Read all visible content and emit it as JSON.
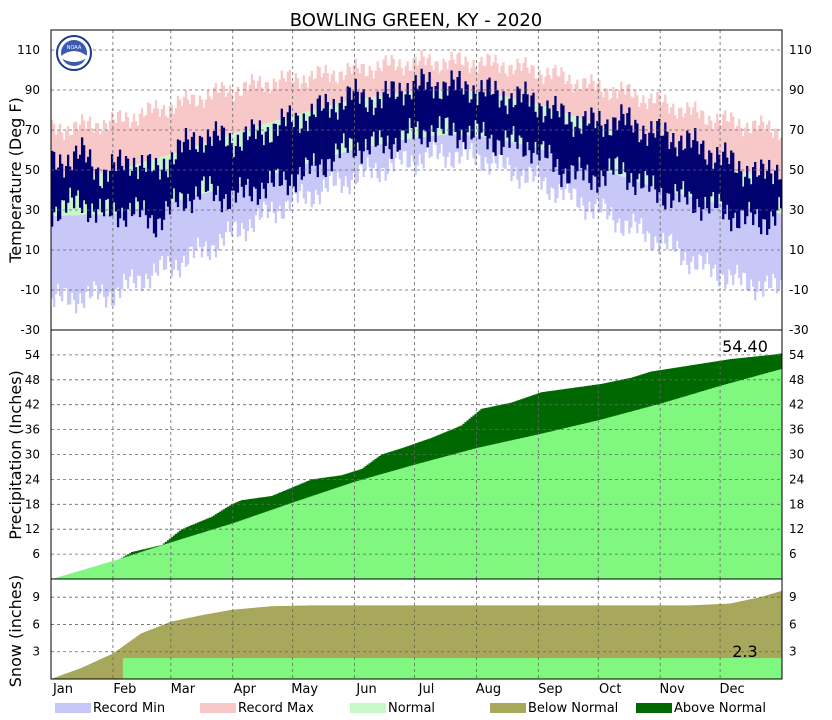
{
  "chart_data": {
    "type": "multi-panel",
    "title": "BOWLING GREEN, KY - 2020",
    "months": [
      "Jan",
      "Feb",
      "Mar",
      "Apr",
      "May",
      "Jun",
      "Jul",
      "Aug",
      "Sep",
      "Oct",
      "Nov",
      "Dec"
    ],
    "temperature": {
      "ylabel": "Temperature (Deg F)",
      "ylim": [
        -30,
        120
      ],
      "ticks": [
        -30,
        -10,
        10,
        30,
        50,
        70,
        90,
        110
      ],
      "record_min_anchors": [
        [
          0,
          -15
        ],
        [
          30,
          -12
        ],
        [
          45,
          -4
        ],
        [
          60,
          2
        ],
        [
          80,
          12
        ],
        [
          100,
          24
        ],
        [
          120,
          34
        ],
        [
          150,
          46
        ],
        [
          175,
          54
        ],
        [
          195,
          58
        ],
        [
          215,
          56
        ],
        [
          240,
          46
        ],
        [
          265,
          34
        ],
        [
          285,
          24
        ],
        [
          305,
          14
        ],
        [
          325,
          2
        ],
        [
          345,
          -6
        ],
        [
          366,
          -10
        ]
      ],
      "record_max_anchors": [
        [
          0,
          70
        ],
        [
          30,
          74
        ],
        [
          60,
          82
        ],
        [
          80,
          88
        ],
        [
          110,
          94
        ],
        [
          140,
          98
        ],
        [
          165,
          102
        ],
        [
          185,
          104
        ],
        [
          210,
          104
        ],
        [
          230,
          102
        ],
        [
          250,
          98
        ],
        [
          270,
          92
        ],
        [
          290,
          88
        ],
        [
          310,
          82
        ],
        [
          330,
          76
        ],
        [
          350,
          72
        ],
        [
          366,
          70
        ]
      ],
      "normal_low_anchors": [
        [
          0,
          27
        ],
        [
          30,
          28
        ],
        [
          60,
          34
        ],
        [
          90,
          42
        ],
        [
          120,
          51
        ],
        [
          150,
          60
        ],
        [
          180,
          66
        ],
        [
          200,
          68
        ],
        [
          215,
          67
        ],
        [
          240,
          62
        ],
        [
          270,
          52
        ],
        [
          300,
          42
        ],
        [
          330,
          34
        ],
        [
          366,
          28
        ]
      ],
      "normal_high_anchors": [
        [
          0,
          45
        ],
        [
          30,
          49
        ],
        [
          60,
          58
        ],
        [
          90,
          68
        ],
        [
          120,
          77
        ],
        [
          150,
          85
        ],
        [
          180,
          89
        ],
        [
          200,
          90
        ],
        [
          215,
          89
        ],
        [
          240,
          84
        ],
        [
          270,
          74
        ],
        [
          300,
          63
        ],
        [
          330,
          52
        ],
        [
          366,
          45
        ]
      ],
      "actual_anchors": [
        [
          0,
          [
            30,
            50
          ]
        ],
        [
          15,
          [
            34,
            55
          ]
        ],
        [
          25,
          [
            28,
            45
          ]
        ],
        [
          40,
          [
            30,
            52
          ]
        ],
        [
          52,
          [
            24,
            46
          ]
        ],
        [
          62,
          [
            33,
            56
          ]
        ],
        [
          75,
          [
            40,
            64
          ]
        ],
        [
          90,
          [
            36,
            62
          ]
        ],
        [
          100,
          [
            40,
            64
          ]
        ],
        [
          115,
          [
            44,
            70
          ]
        ],
        [
          130,
          [
            50,
            75
          ]
        ],
        [
          150,
          [
            62,
            84
          ]
        ],
        [
          165,
          [
            62,
            82
          ]
        ],
        [
          175,
          [
            66,
            88
          ]
        ],
        [
          190,
          [
            70,
            90
          ]
        ],
        [
          210,
          [
            68,
            88
          ]
        ],
        [
          225,
          [
            64,
            84
          ]
        ],
        [
          240,
          [
            62,
            82
          ]
        ],
        [
          255,
          [
            50,
            74
          ]
        ],
        [
          270,
          [
            46,
            70
          ]
        ],
        [
          285,
          [
            50,
            72
          ]
        ],
        [
          300,
          [
            40,
            66
          ]
        ],
        [
          315,
          [
            36,
            62
          ]
        ],
        [
          330,
          [
            32,
            56
          ]
        ],
        [
          345,
          [
            26,
            48
          ]
        ],
        [
          355,
          [
            24,
            44
          ]
        ],
        [
          366,
          [
            30,
            50
          ]
        ]
      ]
    },
    "precipitation": {
      "ylabel": "Precipitation (Inches)",
      "ylim": [
        0,
        60
      ],
      "ticks": [
        6,
        12,
        18,
        24,
        30,
        36,
        42,
        48,
        54
      ],
      "total_label": "54.40",
      "normal_anchors": [
        [
          0,
          0
        ],
        [
          31,
          4.4
        ],
        [
          60,
          8.9
        ],
        [
          91,
          13.5
        ],
        [
          121,
          18.5
        ],
        [
          152,
          23.5
        ],
        [
          182,
          27.6
        ],
        [
          213,
          31.6
        ],
        [
          244,
          34.9
        ],
        [
          274,
          38.3
        ],
        [
          305,
          42.3
        ],
        [
          335,
          46.6
        ],
        [
          366,
          50.7
        ]
      ],
      "actual_anchors": [
        [
          0,
          0
        ],
        [
          10,
          0.8
        ],
        [
          20,
          2.0
        ],
        [
          31,
          4.0
        ],
        [
          40,
          6.5
        ],
        [
          55,
          8.2
        ],
        [
          65,
          12.0
        ],
        [
          80,
          15.0
        ],
        [
          90,
          18.0
        ],
        [
          95,
          19.0
        ],
        [
          110,
          20.0
        ],
        [
          120,
          22.0
        ],
        [
          130,
          24.0
        ],
        [
          145,
          25.0
        ],
        [
          155,
          26.5
        ],
        [
          165,
          30.0
        ],
        [
          175,
          31.5
        ],
        [
          190,
          34.0
        ],
        [
          205,
          37.0
        ],
        [
          215,
          41.0
        ],
        [
          230,
          42.5
        ],
        [
          245,
          45.0
        ],
        [
          260,
          46.0
        ],
        [
          275,
          47.0
        ],
        [
          290,
          48.5
        ],
        [
          300,
          50.0
        ],
        [
          320,
          51.5
        ],
        [
          340,
          53.0
        ],
        [
          360,
          54.0
        ],
        [
          366,
          54.4
        ]
      ]
    },
    "snow": {
      "ylabel": "Snow (inches)",
      "ylim": [
        0,
        11
      ],
      "ticks": [
        3,
        6,
        9
      ],
      "total_label": "2.3",
      "normal_anchors": [
        [
          0,
          0
        ],
        [
          15,
          1.2
        ],
        [
          31,
          2.8
        ],
        [
          45,
          5.0
        ],
        [
          60,
          6.3
        ],
        [
          75,
          7.0
        ],
        [
          90,
          7.6
        ],
        [
          110,
          8.0
        ],
        [
          130,
          8.1
        ],
        [
          200,
          8.1
        ],
        [
          280,
          8.1
        ],
        [
          320,
          8.1
        ],
        [
          340,
          8.3
        ],
        [
          355,
          9.0
        ],
        [
          366,
          9.7
        ]
      ],
      "actual_value": 2.3,
      "actual_start_day": 36
    },
    "legend": [
      {
        "label": "Record Min",
        "color": "#c8c8f8"
      },
      {
        "label": "Record Max",
        "color": "#f8c8c8"
      },
      {
        "label": "Normal",
        "color": "#c8f8c8"
      },
      {
        "label": "Below Normal",
        "color": "#a8a85c"
      },
      {
        "label": "Above Normal",
        "color": "#006800"
      }
    ],
    "colors": {
      "record_min": "#c8c8f8",
      "record_max": "#f8c8c8",
      "normal": "#c8f8c8",
      "actual_temp": "#000070",
      "precip_normal": "#80f880",
      "precip_above": "#006800",
      "snow_normal": "#a8a85c",
      "snow_actual": "#80f880"
    }
  }
}
